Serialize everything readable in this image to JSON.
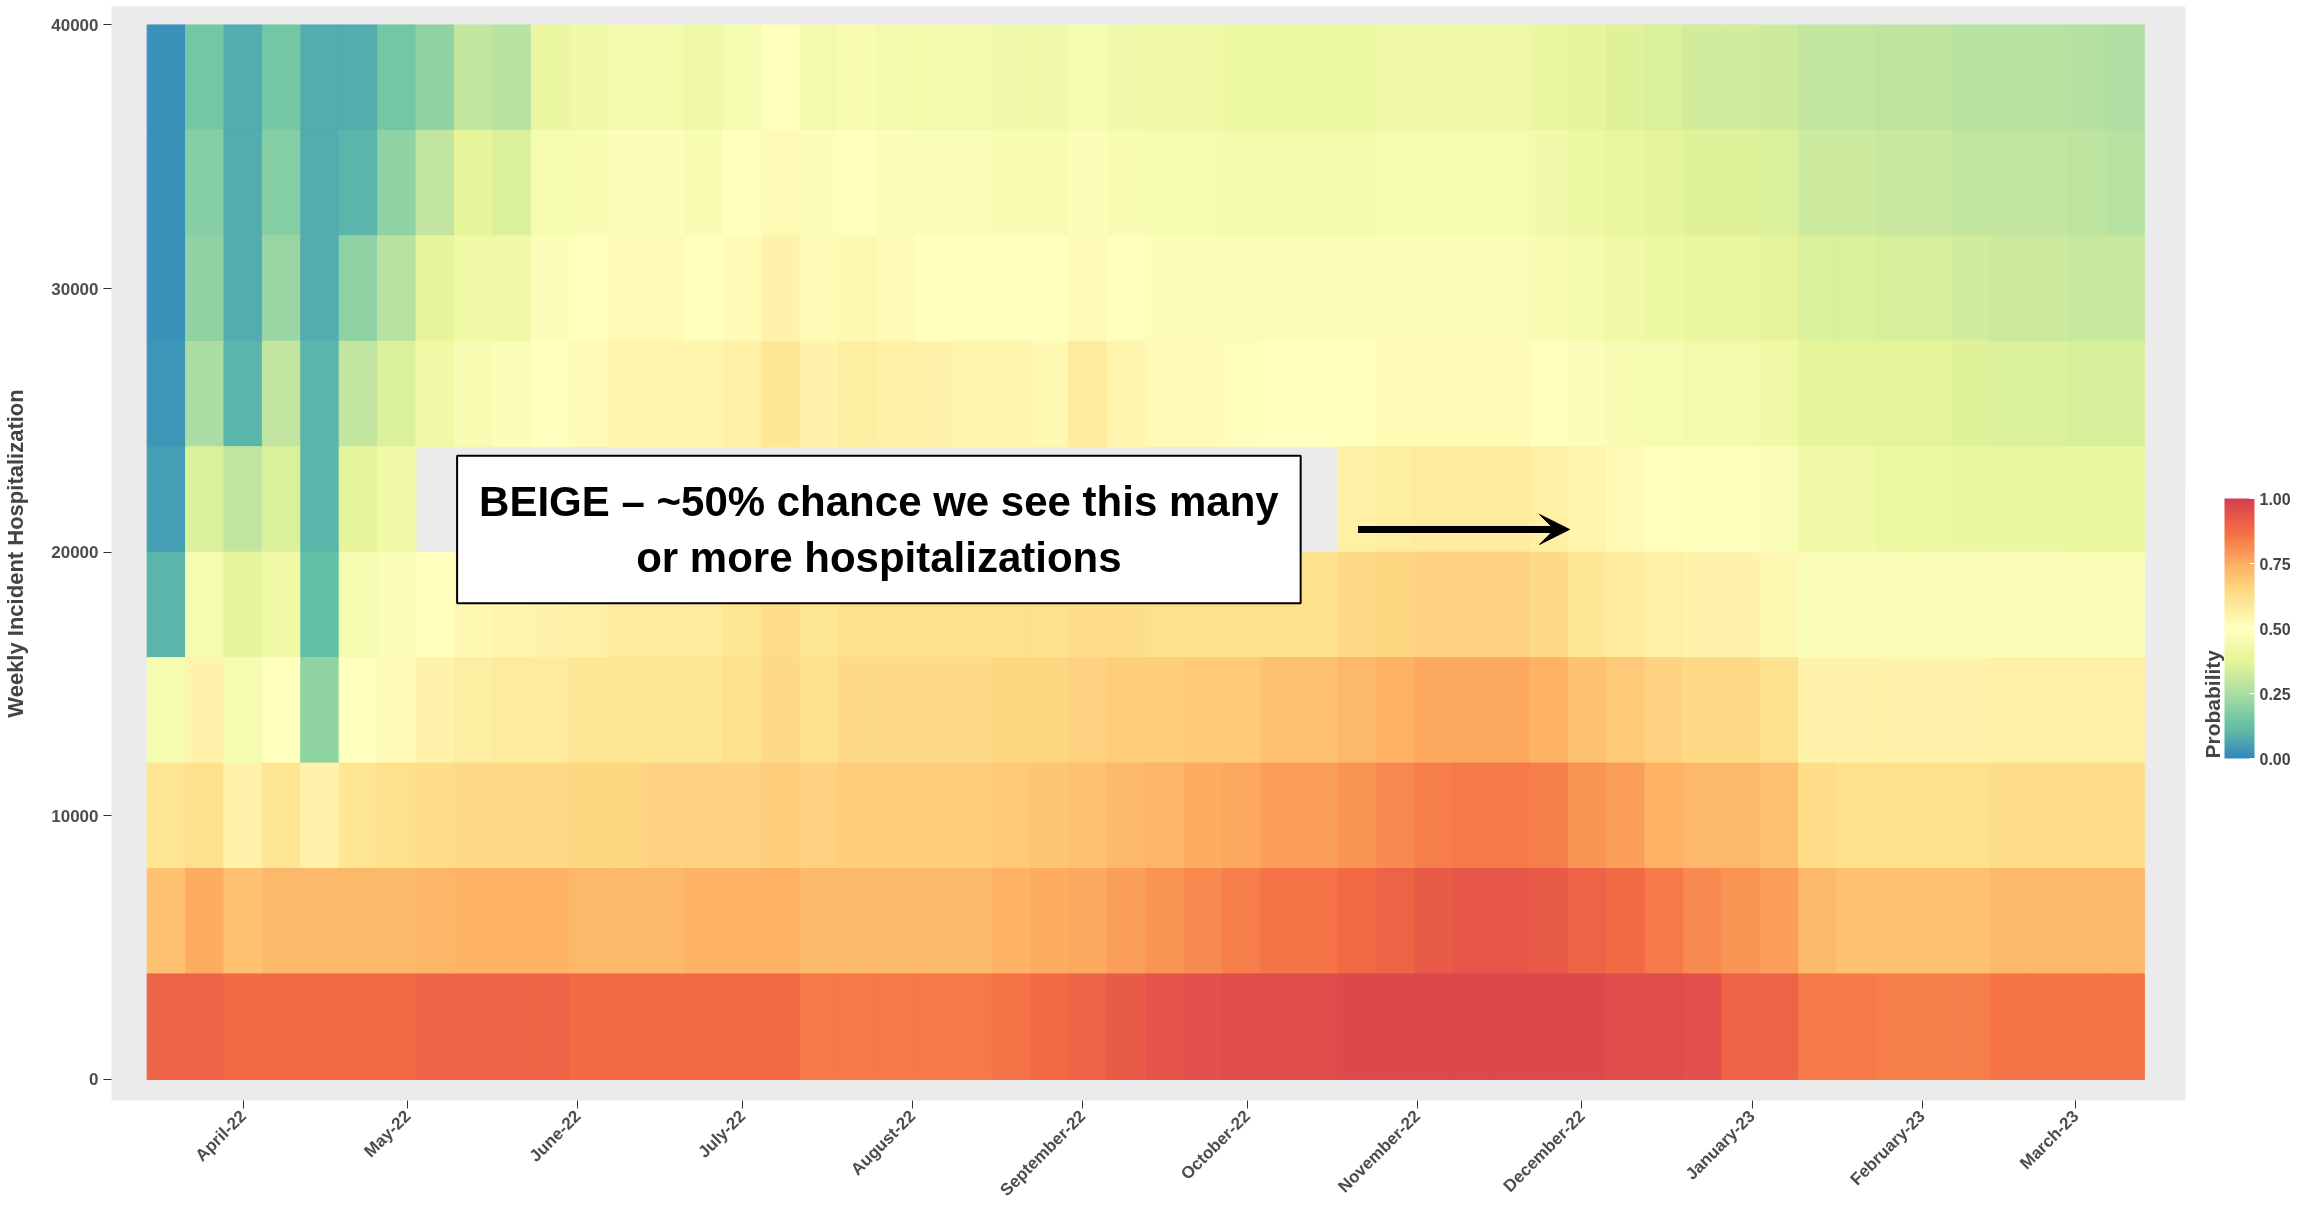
{
  "chart_data": {
    "type": "heatmap",
    "ylabel": "Weekly Incident Hospitalization",
    "clabel": "Probability",
    "x": [
      "2022-03-18",
      "2022-03-25",
      "2022-04-01",
      "2022-04-08",
      "2022-04-15",
      "2022-04-22",
      "2022-04-29",
      "2022-05-06",
      "2022-05-13",
      "2022-05-20",
      "2022-05-27",
      "2022-06-03",
      "2022-06-10",
      "2022-06-17",
      "2022-06-24",
      "2022-07-01",
      "2022-07-08",
      "2022-07-15",
      "2022-07-22",
      "2022-07-29",
      "2022-08-05",
      "2022-08-12",
      "2022-08-19",
      "2022-08-26",
      "2022-09-02",
      "2022-09-09",
      "2022-09-16",
      "2022-09-23",
      "2022-09-30",
      "2022-10-07",
      "2022-10-14",
      "2022-10-21",
      "2022-10-28",
      "2022-11-04",
      "2022-11-11",
      "2022-11-18",
      "2022-11-25",
      "2022-12-02",
      "2022-12-09",
      "2022-12-16",
      "2022-12-23",
      "2022-12-30",
      "2023-01-06",
      "2023-01-13",
      "2023-01-20",
      "2023-01-27",
      "2023-02-03",
      "2023-02-10",
      "2023-02-17",
      "2023-02-24",
      "2023-03-03",
      "2023-03-10"
    ],
    "cells": [
      [
        0.02,
        0.15,
        0.08,
        0.15,
        0.08,
        0.08,
        0.15,
        0.2,
        0.3,
        0.28,
        0.4,
        0.42,
        0.44,
        0.44,
        0.42,
        0.45,
        0.5,
        0.44,
        0.46,
        0.44,
        0.44,
        0.44,
        0.43,
        0.43,
        0.45,
        0.43,
        0.42,
        0.42,
        0.41,
        0.41,
        0.41,
        0.41,
        0.42,
        0.42,
        0.42,
        0.42,
        0.4,
        0.38,
        0.36,
        0.35,
        0.33,
        0.33,
        0.32,
        0.3,
        0.3,
        0.29,
        0.29,
        0.28,
        0.28,
        0.28,
        0.27,
        0.26
      ],
      [
        0.02,
        0.18,
        0.08,
        0.18,
        0.08,
        0.1,
        0.2,
        0.3,
        0.38,
        0.35,
        0.45,
        0.46,
        0.48,
        0.48,
        0.46,
        0.5,
        0.52,
        0.48,
        0.5,
        0.48,
        0.47,
        0.47,
        0.46,
        0.46,
        0.48,
        0.46,
        0.45,
        0.45,
        0.44,
        0.44,
        0.44,
        0.44,
        0.45,
        0.45,
        0.45,
        0.45,
        0.43,
        0.41,
        0.39,
        0.38,
        0.36,
        0.36,
        0.35,
        0.32,
        0.32,
        0.31,
        0.31,
        0.3,
        0.3,
        0.3,
        0.29,
        0.28
      ],
      [
        0.02,
        0.2,
        0.08,
        0.22,
        0.08,
        0.2,
        0.28,
        0.38,
        0.42,
        0.42,
        0.48,
        0.5,
        0.52,
        0.52,
        0.5,
        0.52,
        0.55,
        0.52,
        0.53,
        0.52,
        0.5,
        0.5,
        0.5,
        0.5,
        0.52,
        0.5,
        0.48,
        0.48,
        0.47,
        0.47,
        0.47,
        0.47,
        0.48,
        0.48,
        0.48,
        0.48,
        0.46,
        0.44,
        0.42,
        0.41,
        0.4,
        0.4,
        0.38,
        0.35,
        0.35,
        0.34,
        0.34,
        0.33,
        0.32,
        0.32,
        0.31,
        0.31
      ],
      [
        0.03,
        0.25,
        0.1,
        0.3,
        0.1,
        0.3,
        0.35,
        0.42,
        0.46,
        0.48,
        0.5,
        0.52,
        0.54,
        0.54,
        0.54,
        0.56,
        0.6,
        0.55,
        0.57,
        0.56,
        0.55,
        0.54,
        0.54,
        0.53,
        0.58,
        0.54,
        0.52,
        0.52,
        0.51,
        0.5,
        0.5,
        0.5,
        0.52,
        0.52,
        0.52,
        0.52,
        0.5,
        0.48,
        0.46,
        0.45,
        0.44,
        0.44,
        0.42,
        0.38,
        0.38,
        0.37,
        0.37,
        0.36,
        0.35,
        0.35,
        0.34,
        0.34
      ],
      [
        0.05,
        0.35,
        0.3,
        0.35,
        0.1,
        0.38,
        0.42,
        null,
        null,
        null,
        null,
        null,
        null,
        null,
        null,
        null,
        null,
        null,
        null,
        null,
        null,
        null,
        null,
        null,
        null,
        null,
        null,
        null,
        null,
        null,
        null,
        0.56,
        0.57,
        0.58,
        0.58,
        0.58,
        0.56,
        0.54,
        0.52,
        0.5,
        0.49,
        0.49,
        0.47,
        0.42,
        0.42,
        0.41,
        0.41,
        0.4,
        0.4,
        0.4,
        0.39,
        0.39
      ],
      [
        0.1,
        0.45,
        0.38,
        0.42,
        0.12,
        0.45,
        0.48,
        0.5,
        0.53,
        0.54,
        0.55,
        0.56,
        0.58,
        0.58,
        0.58,
        0.6,
        0.63,
        0.6,
        0.62,
        0.62,
        0.62,
        0.62,
        0.62,
        0.62,
        0.63,
        0.63,
        0.62,
        0.62,
        0.62,
        0.62,
        0.62,
        0.64,
        0.65,
        0.66,
        0.66,
        0.66,
        0.64,
        0.6,
        0.58,
        0.56,
        0.55,
        0.55,
        0.53,
        0.48,
        0.48,
        0.47,
        0.47,
        0.47,
        0.48,
        0.48,
        0.47,
        0.47
      ],
      [
        0.45,
        0.55,
        0.45,
        0.5,
        0.2,
        0.5,
        0.52,
        0.55,
        0.57,
        0.58,
        0.58,
        0.6,
        0.6,
        0.6,
        0.6,
        0.62,
        0.64,
        0.62,
        0.64,
        0.64,
        0.64,
        0.64,
        0.65,
        0.65,
        0.66,
        0.67,
        0.67,
        0.68,
        0.68,
        0.7,
        0.7,
        0.72,
        0.74,
        0.76,
        0.76,
        0.76,
        0.74,
        0.7,
        0.68,
        0.66,
        0.64,
        0.64,
        0.62,
        0.55,
        0.55,
        0.55,
        0.55,
        0.55,
        0.56,
        0.56,
        0.56,
        0.56
      ],
      [
        0.6,
        0.62,
        0.55,
        0.6,
        0.55,
        0.6,
        0.62,
        0.63,
        0.64,
        0.64,
        0.64,
        0.65,
        0.65,
        0.66,
        0.66,
        0.66,
        0.67,
        0.66,
        0.67,
        0.67,
        0.67,
        0.67,
        0.68,
        0.69,
        0.7,
        0.72,
        0.73,
        0.75,
        0.76,
        0.78,
        0.78,
        0.8,
        0.82,
        0.84,
        0.85,
        0.85,
        0.84,
        0.8,
        0.78,
        0.74,
        0.72,
        0.72,
        0.7,
        0.63,
        0.62,
        0.62,
        0.62,
        0.62,
        0.63,
        0.63,
        0.63,
        0.63
      ],
      [
        0.7,
        0.75,
        0.7,
        0.72,
        0.72,
        0.72,
        0.72,
        0.73,
        0.74,
        0.74,
        0.74,
        0.72,
        0.72,
        0.72,
        0.74,
        0.74,
        0.74,
        0.72,
        0.72,
        0.72,
        0.72,
        0.72,
        0.74,
        0.75,
        0.76,
        0.78,
        0.8,
        0.82,
        0.84,
        0.86,
        0.86,
        0.88,
        0.9,
        0.92,
        0.93,
        0.93,
        0.92,
        0.9,
        0.88,
        0.85,
        0.82,
        0.8,
        0.78,
        0.72,
        0.7,
        0.7,
        0.7,
        0.7,
        0.72,
        0.72,
        0.72,
        0.72
      ],
      [
        0.9,
        0.9,
        0.88,
        0.88,
        0.88,
        0.88,
        0.88,
        0.9,
        0.9,
        0.9,
        0.9,
        0.88,
        0.88,
        0.88,
        0.88,
        0.88,
        0.88,
        0.85,
        0.85,
        0.85,
        0.85,
        0.85,
        0.86,
        0.88,
        0.9,
        0.92,
        0.94,
        0.95,
        0.96,
        0.96,
        0.96,
        0.97,
        0.97,
        0.97,
        0.97,
        0.97,
        0.97,
        0.97,
        0.96,
        0.96,
        0.95,
        0.9,
        0.9,
        0.85,
        0.85,
        0.84,
        0.84,
        0.84,
        0.86,
        0.86,
        0.86,
        0.86
      ]
    ],
    "xlim": [
      "2022-03-08",
      "2023-03-21"
    ],
    "xticks": [
      {
        "value": "2022-04-01",
        "label": "April-22"
      },
      {
        "value": "2022-05-01",
        "label": "May-22"
      },
      {
        "value": "2022-06-01",
        "label": "June-22"
      },
      {
        "value": "2022-07-01",
        "label": "July-22"
      },
      {
        "value": "2022-08-01",
        "label": "August-22"
      },
      {
        "value": "2022-09-01",
        "label": "September-22"
      },
      {
        "value": "2022-10-01",
        "label": "October-22"
      },
      {
        "value": "2022-11-01",
        "label": "November-22"
      },
      {
        "value": "2022-12-01",
        "label": "December-22"
      },
      {
        "value": "2023-01-01",
        "label": "January-23"
      },
      {
        "value": "2023-02-01",
        "label": "February-23"
      },
      {
        "value": "2023-03-01",
        "label": "March-23"
      }
    ],
    "ylim": [
      -800,
      40700
    ],
    "yticks": [
      0,
      10000,
      20000,
      30000,
      40000
    ],
    "clim": [
      0,
      1
    ],
    "cticks": [
      {
        "value": 0,
        "label": "0.00"
      },
      {
        "value": 0.25,
        "label": "0.25"
      },
      {
        "value": 0.5,
        "label": "0.50"
      },
      {
        "value": 0.75,
        "label": "0.75"
      },
      {
        "value": 1,
        "label": "1.00"
      }
    ],
    "annotations": [
      "BEIGE – ~50% chance we see this many\nor more hospitalizations"
    ]
  }
}
